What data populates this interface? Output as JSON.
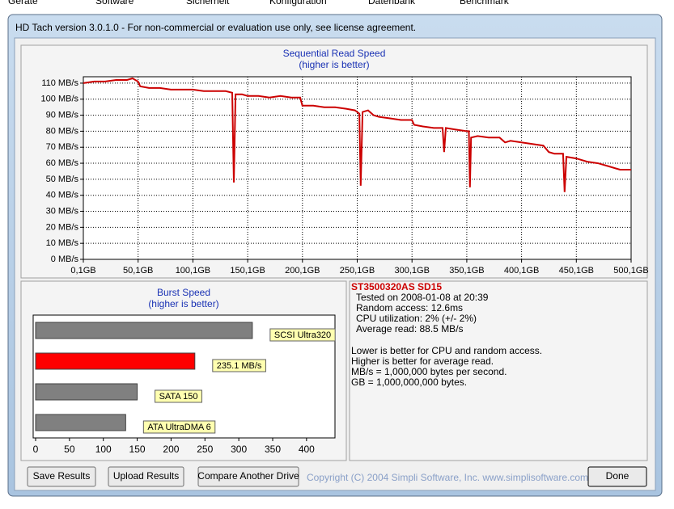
{
  "menu": [
    "Geräte",
    "Software",
    "Sicherheit",
    "Konfiguration",
    "Datenbank",
    "Benchmark"
  ],
  "window_title": "HD Tach version 3.0.1.0  - For non-commercial or evaluation use only, see license agreement.",
  "chart_data": [
    {
      "type": "line",
      "title": "Sequential Read Speed",
      "subtitle": "(higher is better)",
      "x": [
        0.1,
        10,
        20,
        30,
        40,
        45,
        50,
        52,
        60,
        70,
        80,
        90,
        100,
        110,
        120,
        130,
        136,
        137.5,
        139,
        145,
        150,
        160,
        170,
        180,
        190,
        198,
        200,
        210,
        220,
        230,
        240,
        248,
        252,
        253.3,
        255,
        260,
        265,
        270,
        280,
        290,
        300,
        302,
        310,
        320,
        328,
        329.4,
        331,
        340,
        350,
        352,
        353,
        354,
        360,
        370,
        380,
        385,
        390,
        400,
        410,
        420,
        425,
        430,
        435,
        438,
        439.4,
        441,
        450,
        460,
        470,
        480,
        490,
        500.1
      ],
      "series": [
        {
          "color": "#cc0000",
          "values": [
            110,
            111,
            111,
            112,
            112,
            113,
            111,
            108,
            107,
            107,
            106,
            106,
            106,
            105,
            105,
            105,
            104,
            48,
            103,
            103,
            102,
            102,
            101,
            102,
            101,
            101,
            96,
            96,
            95,
            95,
            94,
            93,
            91,
            46,
            92,
            93,
            90,
            89,
            88,
            87,
            87,
            84,
            83,
            82,
            82,
            67,
            82,
            81,
            80,
            80,
            45,
            76,
            77,
            76,
            76,
            73,
            74,
            73,
            72,
            71,
            67,
            66,
            66,
            66,
            42,
            64,
            63,
            61,
            60,
            58,
            56,
            56
          ]
        }
      ],
      "xlim": [
        0.1,
        500.1
      ],
      "ylim": [
        0,
        114
      ],
      "xticks": [
        {
          "value": 0.1,
          "label": "0,1GB"
        },
        {
          "value": 50.1,
          "label": "50,1GB"
        },
        {
          "value": 100.1,
          "label": "100,1GB"
        },
        {
          "value": 150.1,
          "label": "150,1GB"
        },
        {
          "value": 200.1,
          "label": "200,1GB"
        },
        {
          "value": 250.1,
          "label": "250,1GB"
        },
        {
          "value": 300.1,
          "label": "300,1GB"
        },
        {
          "value": 350.1,
          "label": "350,1GB"
        },
        {
          "value": 400.1,
          "label": "400,1GB"
        },
        {
          "value": 450.1,
          "label": "450,1GB"
        },
        {
          "value": 500.1,
          "label": "500,1GB"
        }
      ],
      "yticks": [
        {
          "value": 0,
          "label": "0 MB/s"
        },
        {
          "value": 10,
          "label": "10 MB/s"
        },
        {
          "value": 20,
          "label": "20 MB/s"
        },
        {
          "value": 30,
          "label": "30 MB/s"
        },
        {
          "value": 40,
          "label": "40 MB/s"
        },
        {
          "value": 50,
          "label": "50 MB/s"
        },
        {
          "value": 60,
          "label": "60 MB/s"
        },
        {
          "value": 70,
          "label": "70 MB/s"
        },
        {
          "value": 80,
          "label": "80 MB/s"
        },
        {
          "value": 90,
          "label": "90 MB/s"
        },
        {
          "value": 100,
          "label": "100 MB/s"
        },
        {
          "value": 110,
          "label": "110 MB/s"
        }
      ],
      "grid": true
    },
    {
      "type": "hbar",
      "title": "Burst Speed",
      "subtitle": "(higher is better)",
      "categories": [
        "SCSI Ultra320",
        null,
        "SATA 150",
        "ATA UltraDMA 6"
      ],
      "values": [
        320,
        235.1,
        150,
        133
      ],
      "value_labels": [
        null,
        "235.1 MB/s",
        null,
        null
      ],
      "colors": [
        "#808080",
        "#ff0000",
        "#808080",
        "#808080"
      ],
      "xlim": [
        0,
        442
      ],
      "xticks": [
        0,
        50,
        100,
        150,
        200,
        250,
        300,
        350,
        400
      ]
    }
  ],
  "drive": {
    "name": "ST3500320AS SD15",
    "results": [
      "Tested on 2008-01-08 at 20:39",
      "Random access: 12.6ms",
      "CPU utilization: 2% (+/- 2%)",
      "Average read: 88.5 MB/s"
    ],
    "notes": [
      "Lower is better for CPU and random access.",
      "Higher is better for average read.",
      "MB/s = 1,000,000 bytes per second.",
      "GB = 1,000,000,000 bytes."
    ]
  },
  "buttons": [
    "Save Results",
    "Upload Results",
    "Compare Another Drive",
    "Done"
  ],
  "copyright": "Copyright (C) 2004 Simpli Software, Inc. www.simplisoftware.com"
}
